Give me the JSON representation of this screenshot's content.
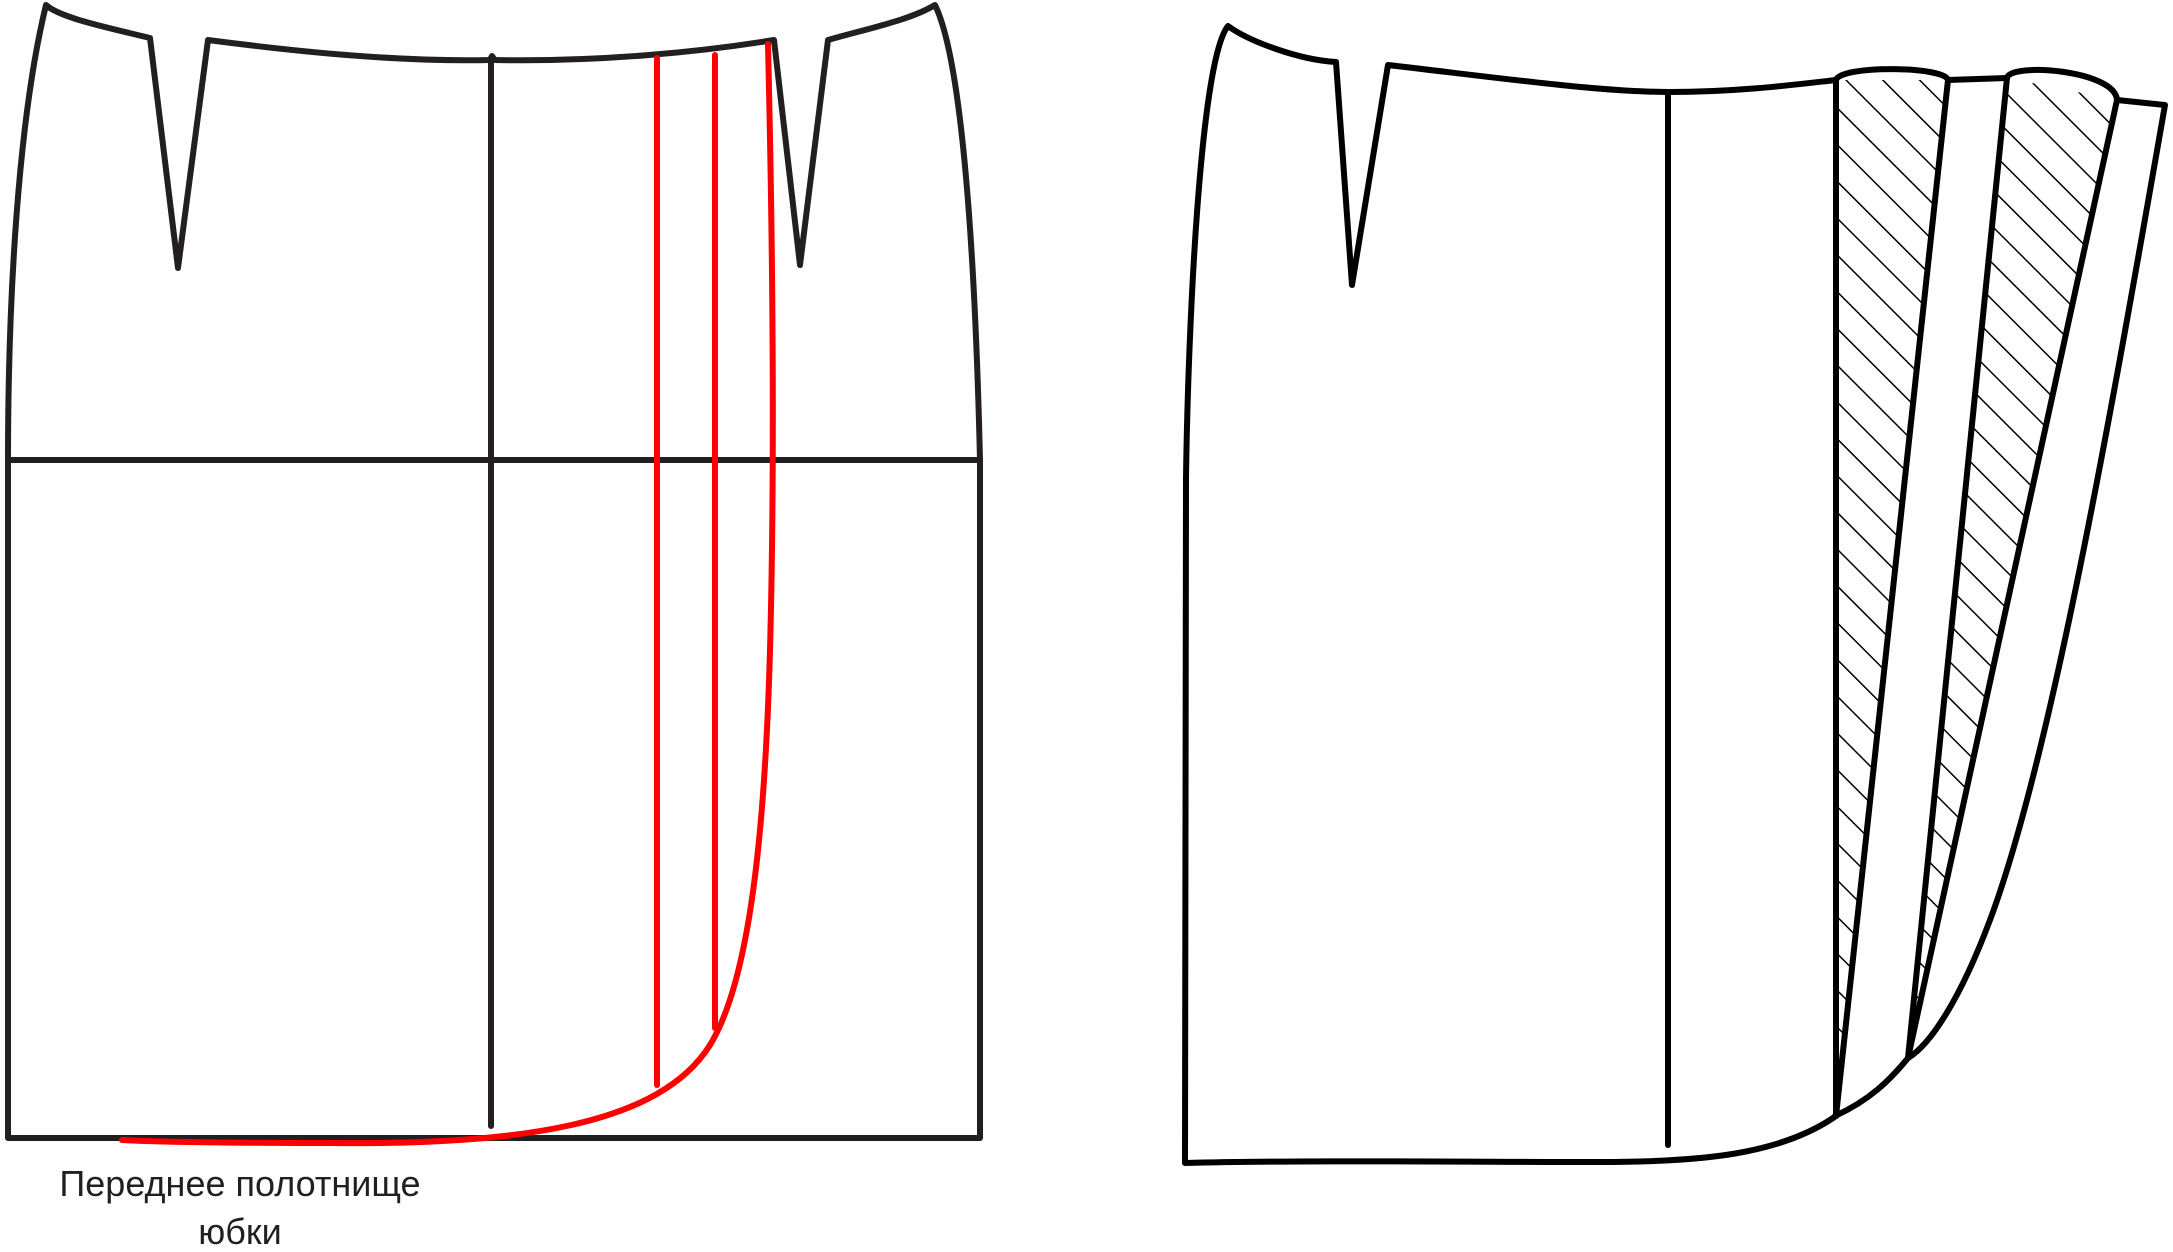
{
  "caption": {
    "line1": "Переднее полотнище",
    "line2": "юбки"
  },
  "colors": {
    "outline": "#231f20",
    "new_lines": "#ff0000",
    "hatch": "#000000"
  }
}
